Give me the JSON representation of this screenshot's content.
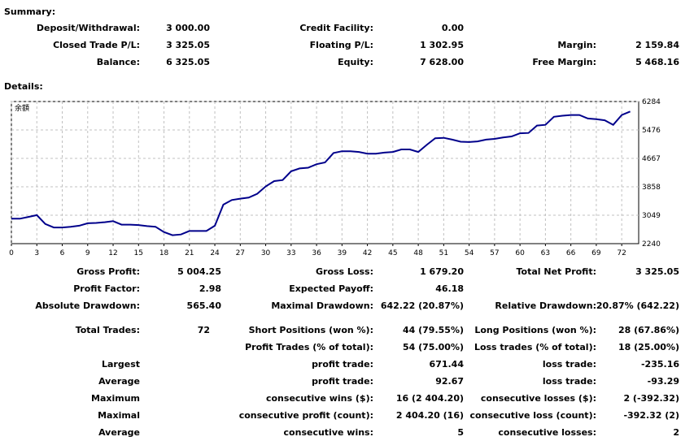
{
  "summary": {
    "title": "Summary:",
    "deposit_label": "Deposit/Withdrawal:",
    "deposit_value": "3 000.00",
    "credit_label": "Credit Facility:",
    "credit_value": "0.00",
    "closed_pl_label": "Closed Trade P/L:",
    "closed_pl_value": "3 325.05",
    "floating_pl_label": "Floating P/L:",
    "floating_pl_value": "1 302.95",
    "margin_label": "Margin:",
    "margin_value": "2 159.84",
    "balance_label": "Balance:",
    "balance_value": "6 325.05",
    "equity_label": "Equity:",
    "equity_value": "7 628.00",
    "free_margin_label": "Free Margin:",
    "free_margin_value": "5 468.16"
  },
  "details": {
    "title": "Details:",
    "chart_corner_label": "余額"
  },
  "chart_data": {
    "type": "line",
    "x_ticks": [
      0,
      3,
      6,
      9,
      12,
      15,
      18,
      21,
      24,
      27,
      30,
      33,
      36,
      39,
      42,
      45,
      48,
      51,
      54,
      57,
      60,
      63,
      66,
      69,
      72
    ],
    "y_ticks": [
      2240,
      3049,
      3858,
      4667,
      5476,
      6284
    ],
    "xlim": [
      0,
      74
    ],
    "ylim": [
      2240,
      6284
    ],
    "grid": true,
    "series": [
      {
        "color": "#00008B",
        "x": [
          0,
          1,
          2,
          3,
          4,
          5,
          6,
          7,
          8,
          9,
          10,
          11,
          12,
          13,
          14,
          15,
          16,
          17,
          18,
          19,
          20,
          21,
          22,
          23,
          24,
          25,
          26,
          27,
          28,
          29,
          30,
          31,
          32,
          33,
          34,
          35,
          36,
          37,
          38,
          39,
          40,
          41,
          42,
          43,
          44,
          45,
          46,
          47,
          48,
          49,
          50,
          51,
          52,
          53,
          54,
          55,
          56,
          57,
          58,
          59,
          60,
          61,
          62,
          63,
          64,
          65,
          66,
          67,
          68,
          69,
          70,
          71,
          72,
          73
        ],
        "y": [
          2950,
          2950,
          3000,
          3050,
          2800,
          2700,
          2700,
          2720,
          2750,
          2820,
          2830,
          2850,
          2880,
          2780,
          2780,
          2770,
          2740,
          2720,
          2570,
          2480,
          2500,
          2600,
          2600,
          2600,
          2750,
          3350,
          3480,
          3520,
          3550,
          3660,
          3870,
          4020,
          4050,
          4300,
          4380,
          4400,
          4500,
          4550,
          4820,
          4870,
          4870,
          4850,
          4800,
          4800,
          4830,
          4850,
          4920,
          4920,
          4850,
          5050,
          5240,
          5250,
          5200,
          5140,
          5130,
          5150,
          5200,
          5220,
          5260,
          5290,
          5380,
          5390,
          5600,
          5620,
          5850,
          5880,
          5900,
          5900,
          5800,
          5780,
          5750,
          5620,
          5900,
          6000
        ]
      }
    ]
  },
  "stats": {
    "gross_profit_label": "Gross Profit:",
    "gross_profit_value": "5 004.25",
    "gross_loss_label": "Gross Loss:",
    "gross_loss_value": "1 679.20",
    "total_net_profit_label": "Total Net Profit:",
    "total_net_profit_value": "3 325.05",
    "profit_factor_label": "Profit Factor:",
    "profit_factor_value": "2.98",
    "expected_payoff_label": "Expected Payoff:",
    "expected_payoff_value": "46.18",
    "absolute_drawdown_label": "Absolute Drawdown:",
    "absolute_drawdown_value": "565.40",
    "maximal_drawdown_label": "Maximal Drawdown:",
    "maximal_drawdown_value": "642.22 (20.87%)",
    "relative_drawdown_label": "Relative Drawdown:",
    "relative_drawdown_value": "20.87% (642.22)",
    "total_trades_label": "Total Trades:",
    "total_trades_value": "72",
    "short_positions_label": "Short Positions (won %):",
    "short_positions_value": "44 (79.55%)",
    "long_positions_label": "Long Positions (won %):",
    "long_positions_value": "28 (67.86%)",
    "profit_trades_label": "Profit Trades (% of total):",
    "profit_trades_value": "54 (75.00%)",
    "loss_trades_label": "Loss trades (% of total):",
    "loss_trades_value": "18 (25.00%)",
    "largest_label": "Largest",
    "largest_profit_label": "profit trade:",
    "largest_profit_value": "671.44",
    "largest_loss_label": "loss trade:",
    "largest_loss_value": "-235.16",
    "average_label": "Average",
    "average_profit_label": "profit trade:",
    "average_profit_value": "92.67",
    "average_loss_label": "loss trade:",
    "average_loss_value": "-93.29",
    "maximum_label": "Maximum",
    "max_consec_wins_label": "consecutive wins ($):",
    "max_consec_wins_value": "16 (2 404.20)",
    "max_consec_losses_label": "consecutive losses ($):",
    "max_consec_losses_value": "2 (-392.32)",
    "maximal_label": "Maximal",
    "maximal_consec_profit_label": "consecutive profit (count):",
    "maximal_consec_profit_value": "2 404.20 (16)",
    "maximal_consec_loss_label": "consecutive loss (count):",
    "maximal_consec_loss_value": "-392.32 (2)",
    "average2_label": "Average",
    "avg_consec_wins_label": "consecutive wins:",
    "avg_consec_wins_value": "5",
    "avg_consec_losses_label": "consecutive losses:",
    "avg_consec_losses_value": "2"
  }
}
